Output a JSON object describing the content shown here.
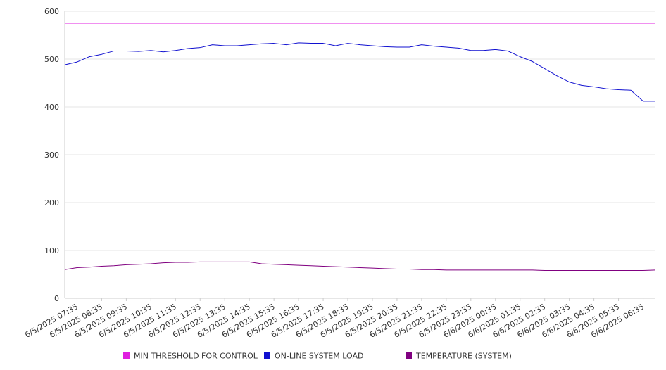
{
  "chart_data": {
    "type": "line",
    "title": "",
    "xlabel": "",
    "ylabel": "",
    "ylim": [
      0,
      600
    ],
    "y_ticks": [
      0,
      100,
      200,
      300,
      400,
      500,
      600
    ],
    "grid": true,
    "legend_position": "bottom",
    "x_labels": [
      "6/5/2025 07:35",
      "6/5/2025 08:35",
      "6/5/2025 09:35",
      "6/5/2025 10:35",
      "6/5/2025 11:35",
      "6/5/2025 12:35",
      "6/5/2025 13:35",
      "6/5/2025 14:35",
      "6/5/2025 15:35",
      "6/5/2025 16:35",
      "6/5/2025 17:35",
      "6/5/2025 18:35",
      "6/5/2025 19:35",
      "6/5/2025 20:35",
      "6/5/2025 21:35",
      "6/5/2025 22:35",
      "6/5/2025 23:35",
      "6/6/2025 00:35",
      "6/6/2025 01:35",
      "6/6/2025 02:35",
      "6/6/2025 03:35",
      "6/6/2025 04:35",
      "6/6/2025 05:35",
      "6/6/2025 06:35"
    ],
    "x": [
      "6/5/2025 07:35",
      "6/5/2025 08:05",
      "6/5/2025 08:35",
      "6/5/2025 09:05",
      "6/5/2025 09:35",
      "6/5/2025 10:05",
      "6/5/2025 10:35",
      "6/5/2025 11:05",
      "6/5/2025 11:35",
      "6/5/2025 12:05",
      "6/5/2025 12:35",
      "6/5/2025 13:05",
      "6/5/2025 13:35",
      "6/5/2025 14:05",
      "6/5/2025 14:35",
      "6/5/2025 15:05",
      "6/5/2025 15:35",
      "6/5/2025 16:05",
      "6/5/2025 16:35",
      "6/5/2025 17:05",
      "6/5/2025 17:35",
      "6/5/2025 18:05",
      "6/5/2025 18:35",
      "6/5/2025 19:05",
      "6/5/2025 19:35",
      "6/5/2025 20:05",
      "6/5/2025 20:35",
      "6/5/2025 21:05",
      "6/5/2025 21:35",
      "6/5/2025 22:05",
      "6/5/2025 22:35",
      "6/5/2025 23:05",
      "6/5/2025 23:35",
      "6/6/2025 00:05",
      "6/6/2025 00:35",
      "6/6/2025 01:05",
      "6/6/2025 01:35",
      "6/6/2025 02:05",
      "6/6/2025 02:35",
      "6/6/2025 03:05",
      "6/6/2025 03:35",
      "6/6/2025 04:05",
      "6/6/2025 04:35",
      "6/6/2025 05:05",
      "6/6/2025 05:35",
      "6/6/2025 06:05",
      "6/6/2025 06:35",
      "6/6/2025 07:05",
      "6/6/2025 07:30"
    ],
    "series": [
      {
        "name": "MIN THRESHOLD FOR CONTROL",
        "color": "#e020e0",
        "values": [
          575,
          575,
          575,
          575,
          575,
          575,
          575,
          575,
          575,
          575,
          575,
          575,
          575,
          575,
          575,
          575,
          575,
          575,
          575,
          575,
          575,
          575,
          575,
          575,
          575,
          575,
          575,
          575,
          575,
          575,
          575,
          575,
          575,
          575,
          575,
          575,
          575,
          575,
          575,
          575,
          575,
          575,
          575,
          575,
          575,
          575,
          575,
          575,
          575
        ]
      },
      {
        "name": "ON-LINE SYSTEM LOAD",
        "color": "#1010d0",
        "values": [
          488,
          494,
          505,
          510,
          517,
          517,
          516,
          518,
          515,
          518,
          522,
          524,
          530,
          528,
          528,
          530,
          532,
          533,
          530,
          534,
          533,
          533,
          528,
          533,
          530,
          528,
          526,
          525,
          525,
          530,
          527,
          525,
          523,
          518,
          518,
          520,
          517,
          505,
          495,
          480,
          465,
          452,
          445,
          442,
          438,
          436,
          435,
          412,
          412
        ]
      },
      {
        "name": "TEMPERATURE (SYSTEM)",
        "color": "#800080",
        "values": [
          60,
          64,
          65,
          67,
          68,
          70,
          71,
          72,
          74,
          75,
          75,
          76,
          76,
          76,
          76,
          76,
          72,
          71,
          70,
          69,
          68,
          67,
          66,
          65,
          64,
          63,
          62,
          61,
          61,
          60,
          60,
          59,
          59,
          59,
          59,
          59,
          59,
          59,
          59,
          58,
          58,
          58,
          58,
          58,
          58,
          58,
          58,
          58,
          59
        ]
      }
    ]
  }
}
